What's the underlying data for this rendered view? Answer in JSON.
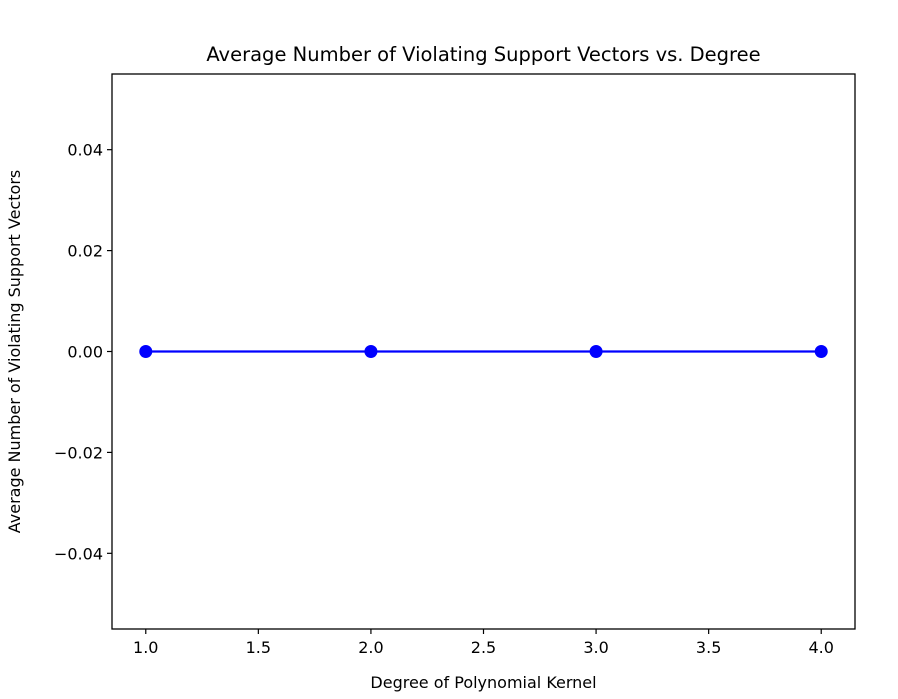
{
  "chart_data": {
    "type": "line",
    "title": "Average Number of Violating Support Vectors vs. Degree",
    "xlabel": "Degree of Polynomial Kernel",
    "ylabel": "Average Number of Violating Support Vectors",
    "xlim": [
      0.85,
      4.15
    ],
    "ylim": [
      -0.055,
      0.055
    ],
    "x_ticks": [
      1.0,
      1.5,
      2.0,
      2.5,
      3.0,
      3.5,
      4.0
    ],
    "x_tick_labels": [
      "1.0",
      "1.5",
      "2.0",
      "2.5",
      "3.0",
      "3.5",
      "4.0"
    ],
    "y_ticks": [
      -0.04,
      -0.02,
      0.0,
      0.02,
      0.04
    ],
    "y_tick_labels": [
      "−0.04",
      "−0.02",
      "0.00",
      "0.02",
      "0.04"
    ],
    "grid": false,
    "series": [
      {
        "x": [
          1,
          2,
          3,
          4
        ],
        "values": [
          0,
          0,
          0,
          0
        ],
        "color": "#0000ff",
        "marker": "circle"
      }
    ]
  }
}
